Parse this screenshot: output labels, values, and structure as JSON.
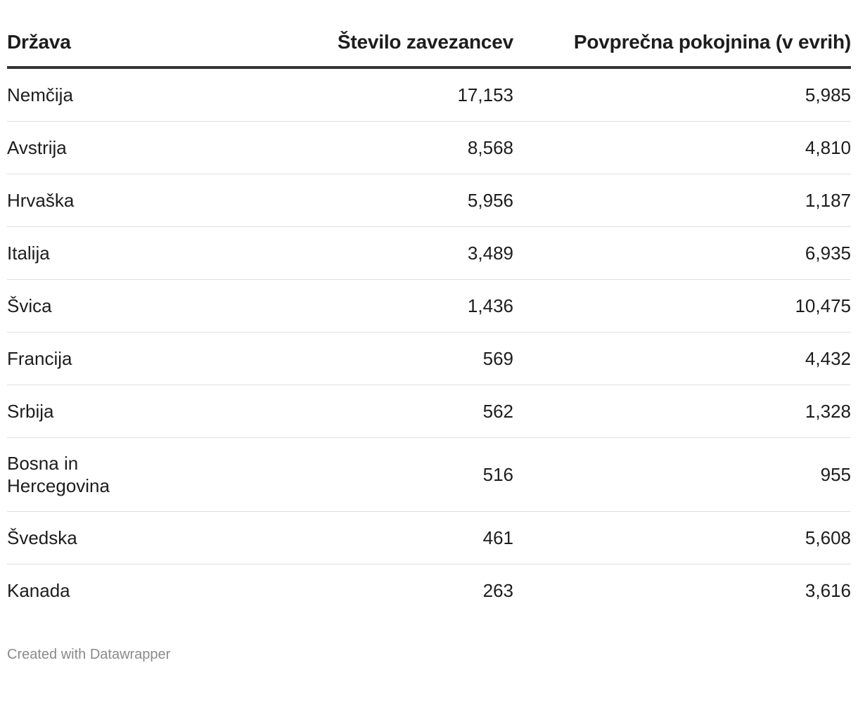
{
  "chart_data": {
    "type": "table",
    "columns": [
      "Država",
      "Število zavezancev",
      "Povprečna pokojnina (v evrih)"
    ],
    "rows": [
      {
        "country": "Nemčija",
        "count": "17,153",
        "pension": "5,985"
      },
      {
        "country": "Avstrija",
        "count": "8,568",
        "pension": "4,810"
      },
      {
        "country": "Hrvaška",
        "count": "5,956",
        "pension": "1,187"
      },
      {
        "country": "Italija",
        "count": "3,489",
        "pension": "6,935"
      },
      {
        "country": "Švica",
        "count": "1,436",
        "pension": "10,475"
      },
      {
        "country": "Francija",
        "count": "569",
        "pension": "4,432"
      },
      {
        "country": "Srbija",
        "count": "562",
        "pension": "1,328"
      },
      {
        "country": "Bosna in Hercegovina",
        "count": "516",
        "pension": "955"
      },
      {
        "country": "Švedska",
        "count": "461",
        "pension": "5,608"
      },
      {
        "country": "Kanada",
        "count": "263",
        "pension": "3,616"
      }
    ]
  },
  "footer": {
    "credit": "Created with Datawrapper"
  }
}
